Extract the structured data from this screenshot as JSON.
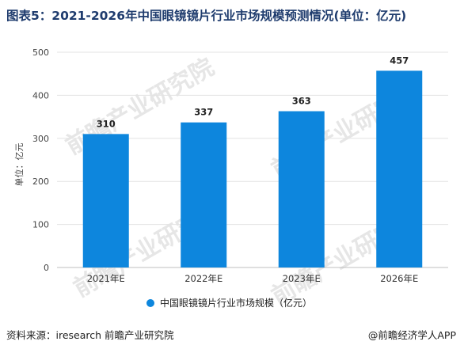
{
  "title": "图表5：2021-2026年中国眼镜镜片行业市场规模预测情况(单位：亿元)",
  "watermark_text": "前瞻产业研究院",
  "source": "资料来源：iresearch 前瞻产业研究院",
  "credit": "@前瞻经济学人APP",
  "chart_data": {
    "type": "bar",
    "categories": [
      "2021年E",
      "2022年E",
      "2023年E",
      "2026年E"
    ],
    "series": [
      {
        "name": "中国眼镜镜片行业市场规模（亿元）",
        "values": [
          310,
          337,
          363,
          457
        ],
        "color": "#0d86dd"
      }
    ],
    "ylabel": "单位：亿元",
    "ylim": [
      0,
      500
    ],
    "yticks": [
      0,
      100,
      200,
      300,
      400,
      500
    ],
    "grid": true,
    "legend_position": "bottom"
  }
}
